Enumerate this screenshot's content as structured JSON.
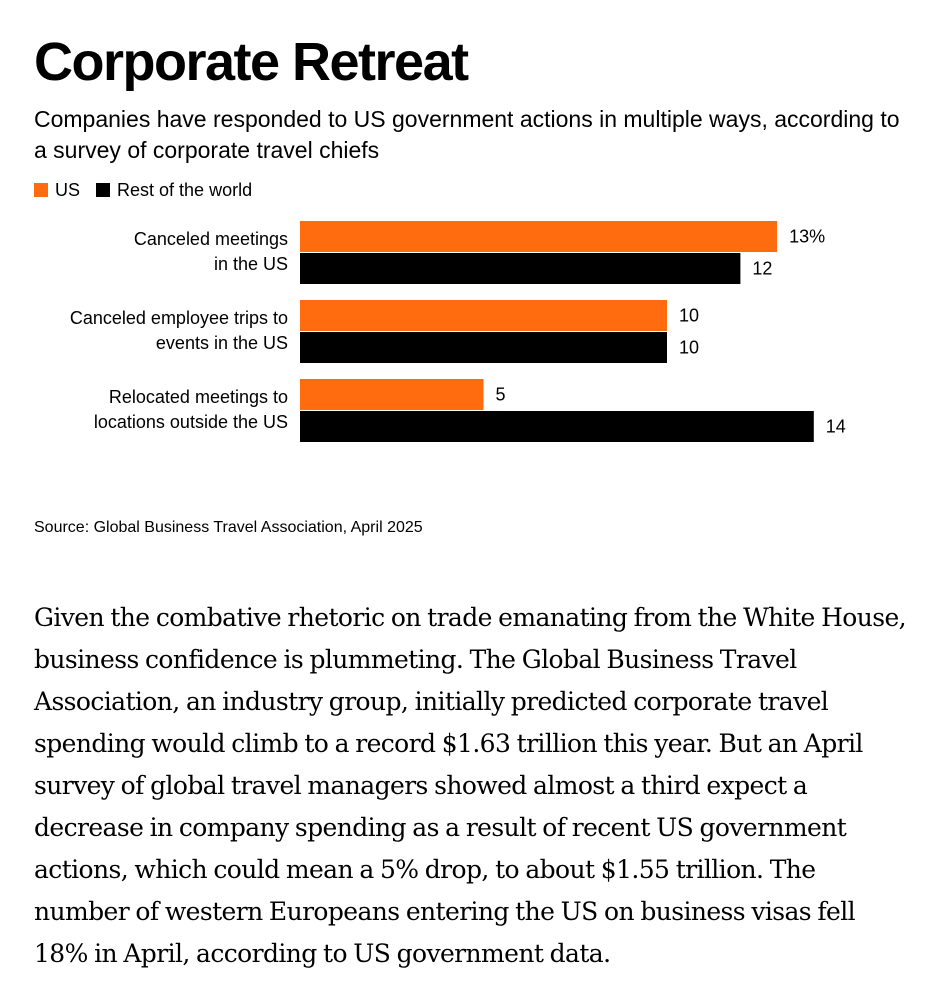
{
  "colors": {
    "us": "#ff6b0f",
    "rest_of_world": "#000000",
    "text": "#000000",
    "background": "#ffffff"
  },
  "chart_data": {
    "type": "bar",
    "orientation": "horizontal",
    "title": "Corporate Retreat",
    "subtitle": "Companies have responded to US government actions in multiple ways, according to a survey of corporate travel chiefs",
    "categories": [
      [
        "Canceled meetings",
        "in the US"
      ],
      [
        "Canceled employee trips to",
        "events in the US"
      ],
      [
        "Relocated meetings to",
        "locations outside the US"
      ]
    ],
    "series": [
      {
        "name": "US",
        "values": [
          13,
          10,
          5
        ],
        "labels": [
          "13%",
          "10",
          "5"
        ]
      },
      {
        "name": "Rest of the world",
        "values": [
          12,
          10,
          14
        ],
        "labels": [
          "12",
          "10",
          "14"
        ]
      }
    ],
    "xlim": [
      0,
      14
    ],
    "grid": false,
    "legend_placement": "top-left",
    "source": "Source: Global Business Travel Association, April 2025"
  },
  "article": {
    "paragraph": "Given the combative rhetoric on trade emanating from the White House, business confidence is plummeting. The Global Business Travel Association, an industry group, initially predicted corporate travel spending would climb to a record $1.63 trillion this year. But an April survey of global travel managers showed almost a third expect a decrease in company spending as a result of recent US government actions, which could mean a 5% drop, to about $1.55 trillion. The number of western Europeans entering the US on business visas fell 18% in April, according to US government data."
  }
}
